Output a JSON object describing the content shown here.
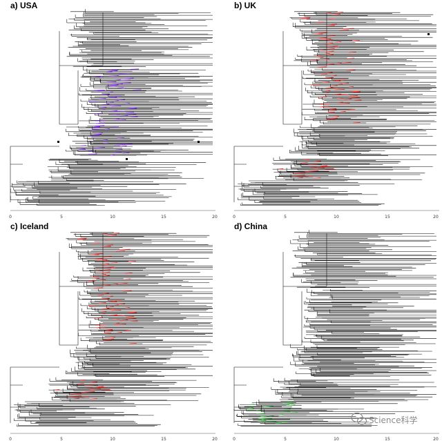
{
  "chart_data": [
    {
      "type": "phylogenetic-tree",
      "title": "a) USA",
      "highlight_color": "#7b2be0",
      "highlight_clusters": [
        "upper-middle",
        "middle"
      ],
      "x_axis": {
        "ticks": [
          0,
          5,
          10,
          15,
          20
        ],
        "tick_labels": [
          "0",
          "5",
          "10",
          "15",
          "20"
        ],
        "xlim": [
          0,
          20
        ]
      }
    },
    {
      "type": "phylogenetic-tree",
      "title": "b) UK",
      "highlight_color": "#e0261f",
      "highlight_clusters": [
        "top",
        "upper-middle",
        "lower"
      ],
      "x_axis": {
        "ticks": [
          0,
          5,
          10,
          15,
          20
        ],
        "tick_labels": [
          "0",
          "5",
          "10",
          "15",
          "20"
        ],
        "xlim": [
          0,
          20
        ]
      }
    },
    {
      "type": "phylogenetic-tree",
      "title": "c) Iceland",
      "highlight_color": "#e0261f",
      "highlight_clusters": [
        "top",
        "upper-middle",
        "lower"
      ],
      "x_axis": {
        "ticks": [
          0,
          5,
          10,
          15,
          20
        ],
        "tick_labels": [
          "0",
          "5",
          "10",
          "15",
          "20"
        ],
        "xlim": [
          0,
          20
        ]
      }
    },
    {
      "type": "phylogenetic-tree",
      "title": "d) China",
      "highlight_color": "#2fb83a",
      "highlight_clusters": [
        "bottom-left"
      ],
      "x_axis": {
        "ticks": [
          0,
          5,
          10,
          15,
          20
        ],
        "tick_labels": [
          "0",
          "5",
          "10",
          "15",
          "20"
        ],
        "xlim": [
          0,
          20
        ]
      }
    }
  ],
  "watermark": {
    "text": "Science科学",
    "icon": "wechat-icon"
  }
}
